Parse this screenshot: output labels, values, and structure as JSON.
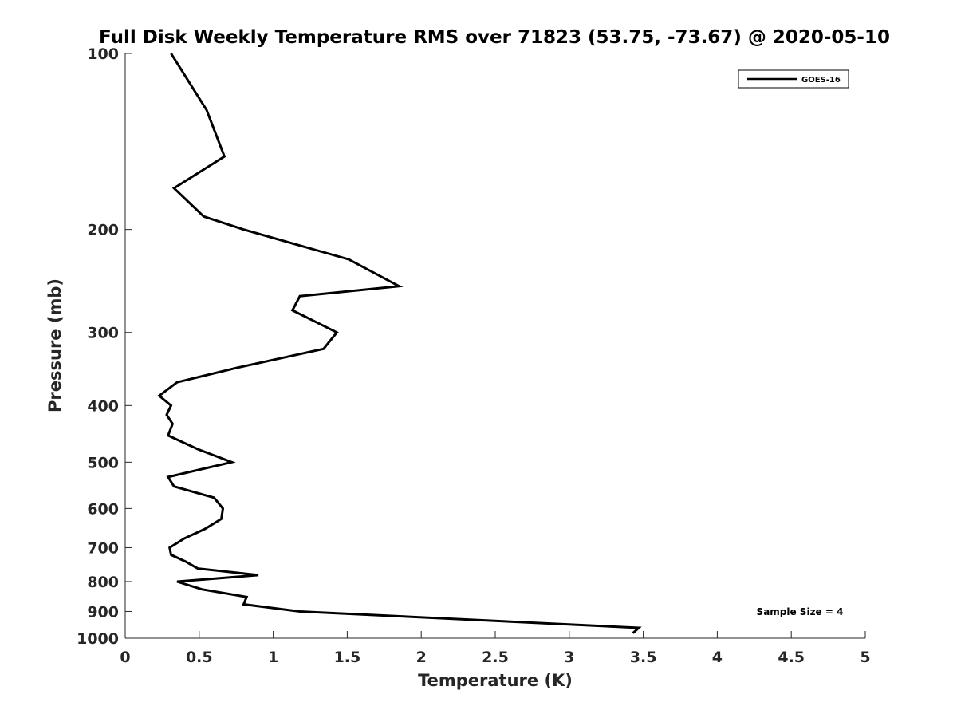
{
  "chart_data": {
    "type": "line",
    "title": "Full Disk Weekly Temperature RMS over 71823 (53.75, -73.67) @ 2020-05-10",
    "xlabel": "Temperature (K)",
    "ylabel": "Pressure (mb)",
    "xlim": [
      0,
      5
    ],
    "ylim": [
      100,
      1000
    ],
    "y_scale": "log",
    "y_reversed": true,
    "x_ticks": [
      "0",
      "0.5",
      "1",
      "1.5",
      "2",
      "2.5",
      "3",
      "3.5",
      "4",
      "4.5",
      "5"
    ],
    "x_tick_values": [
      0,
      0.5,
      1,
      1.5,
      2,
      2.5,
      3,
      3.5,
      4,
      4.5,
      5
    ],
    "y_ticks": [
      "100",
      "200",
      "300",
      "400",
      "500",
      "600",
      "700",
      "800",
      "900",
      "1000"
    ],
    "y_tick_values": [
      100,
      200,
      300,
      400,
      500,
      600,
      700,
      800,
      900,
      1000
    ],
    "grid": false,
    "legend_position": "top-right",
    "line_color": "#000000",
    "series": [
      {
        "name": "GOES-16",
        "x": [
          0.31,
          0.55,
          0.67,
          0.33,
          0.53,
          0.8,
          1.51,
          1.85,
          1.18,
          1.13,
          1.43,
          1.34,
          0.75,
          0.35,
          0.23,
          0.31,
          0.28,
          0.32,
          0.29,
          0.49,
          0.72,
          0.29,
          0.33,
          0.6,
          0.66,
          0.65,
          0.54,
          0.4,
          0.3,
          0.31,
          0.41,
          0.49,
          0.9,
          0.35,
          0.52,
          0.82,
          0.8,
          1.18,
          3.47,
          3.43
        ],
        "y": [
          100,
          125,
          150,
          170,
          190,
          200,
          225,
          250,
          260,
          275,
          300,
          320,
          345,
          365,
          385,
          400,
          415,
          430,
          450,
          475,
          500,
          530,
          550,
          575,
          600,
          625,
          650,
          675,
          700,
          720,
          740,
          760,
          780,
          800,
          825,
          850,
          875,
          900,
          960,
          980
        ]
      }
    ],
    "annotation": "Sample Size = 4"
  }
}
